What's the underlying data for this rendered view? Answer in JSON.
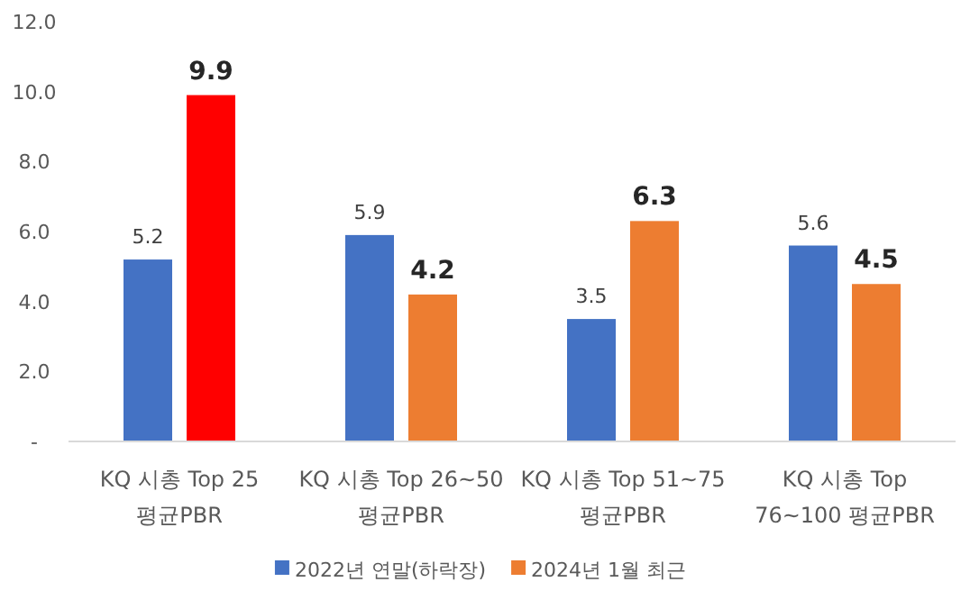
{
  "chart_data": {
    "type": "bar",
    "categories": [
      "KQ 시총 Top 25 평균PBR",
      "KQ 시총 Top 26~50 평균PBR",
      "KQ 시총 Top 51~75 평균PBR",
      "KQ 시총 Top 76~100 평균PBR"
    ],
    "series": [
      {
        "name": "2022년 연말(하락장)",
        "color": "#4472c4",
        "values": [
          5.2,
          5.9,
          3.5,
          5.6
        ]
      },
      {
        "name": "2024년 1월 최근",
        "color": "#ed7d31",
        "colors": [
          "#ff0000",
          "#ed7d31",
          "#ed7d31",
          "#ed7d31"
        ],
        "values": [
          9.9,
          4.2,
          6.3,
          4.5
        ]
      }
    ],
    "ylim": [
      0,
      12
    ],
    "yticks": [
      {
        "value": 0,
        "label": "-"
      },
      {
        "value": 2,
        "label": "2.0"
      },
      {
        "value": 4,
        "label": "4.0"
      },
      {
        "value": 6,
        "label": "6.0"
      },
      {
        "value": 8,
        "label": "8.0"
      },
      {
        "value": 10,
        "label": "10.0"
      },
      {
        "value": 12,
        "label": "12.0"
      }
    ],
    "data_labels": true,
    "grid": false,
    "legend": "bottom"
  }
}
